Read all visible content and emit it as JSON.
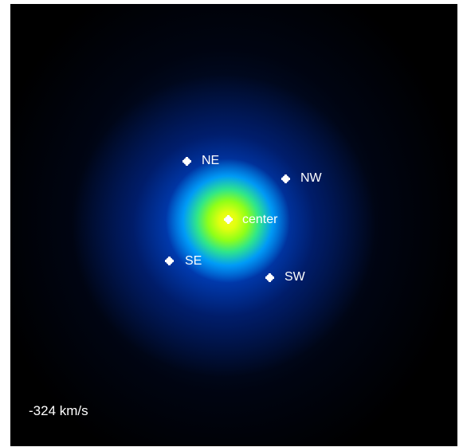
{
  "image": {
    "background_color": "#000000",
    "colormap_colors": [
      "#000000",
      "#003ab0",
      "#006eff",
      "#2fe68a",
      "#e0ff10",
      "#ffffff"
    ],
    "annotation_color": "#ffffff"
  },
  "markers": [
    {
      "id": "ne",
      "label": "NE",
      "icon": "star-icon"
    },
    {
      "id": "nw",
      "label": "NW",
      "icon": "star-icon"
    },
    {
      "id": "center",
      "label": "center",
      "icon": "star-icon"
    },
    {
      "id": "se",
      "label": "SE",
      "icon": "star-icon"
    },
    {
      "id": "sw",
      "label": "SW",
      "icon": "star-icon"
    }
  ],
  "velocity_label": "-324 km/s"
}
